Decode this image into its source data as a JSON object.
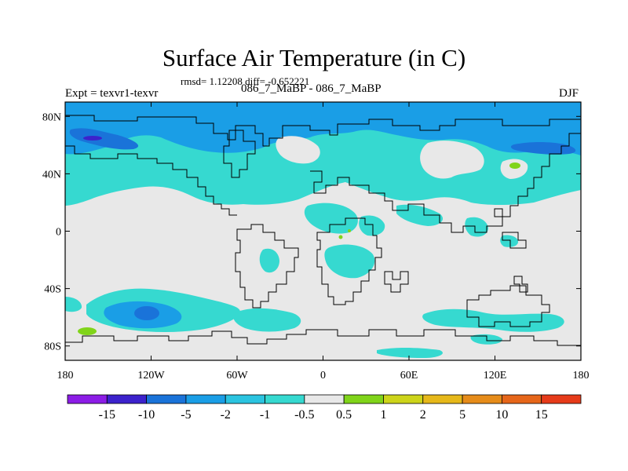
{
  "title": "Surface Air Temperature (in C)",
  "stats": "rmsd= 1.12208 diff= -0.652221",
  "experiment": "Expt = texvr1-texvr",
  "subtitle": "086_7_MaBP - 086_7_MaBP",
  "season": "DJF",
  "map": {
    "lon_range": [
      -180,
      180
    ],
    "lat_range": [
      -90,
      90
    ],
    "x_ticks": [
      {
        "value": -180,
        "label": "180"
      },
      {
        "value": -120,
        "label": "120W"
      },
      {
        "value": -60,
        "label": "60W"
      },
      {
        "value": 0,
        "label": "0"
      },
      {
        "value": 60,
        "label": "60E"
      },
      {
        "value": 120,
        "label": "120E"
      },
      {
        "value": 180,
        "label": "180"
      }
    ],
    "y_ticks": [
      {
        "value": 80,
        "label": "80N"
      },
      {
        "value": 40,
        "label": "40N"
      },
      {
        "value": 0,
        "label": "0"
      },
      {
        "value": -40,
        "label": "40S"
      },
      {
        "value": -80,
        "label": "80S"
      }
    ],
    "background_color": "#e8e8e8"
  },
  "colorbar": {
    "levels": [
      "-15",
      "-10",
      "-5",
      "-2",
      "-1",
      "-0.5",
      "0.5",
      "1",
      "2",
      "5",
      "10",
      "15"
    ],
    "colors": [
      "#8c1de6",
      "#3c22cc",
      "#1a73d9",
      "#1a9ee6",
      "#2bc4e0",
      "#36d9d0",
      "#e8e8e8",
      "#80d41a",
      "#cdd41a",
      "#e6b81a",
      "#e68c1a",
      "#e6661a",
      "#e63b1a"
    ]
  }
}
